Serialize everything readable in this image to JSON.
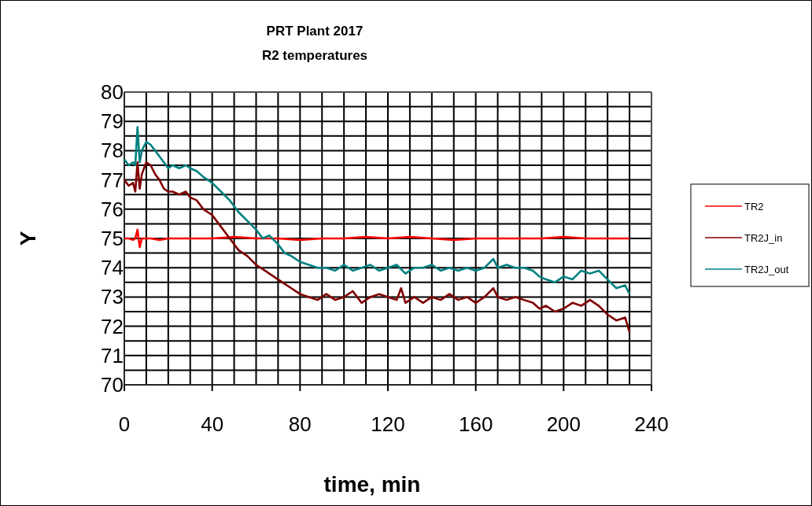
{
  "chart_data": {
    "type": "line",
    "title": "PRT Plant 2017",
    "subtitle": "R2 temperatures",
    "xlabel": "time, min",
    "ylabel": "Y",
    "xlim": [
      0,
      240
    ],
    "ylim": [
      70,
      80
    ],
    "xticks": [
      0,
      {
        "value": 10,
        "label": null
      },
      {
        "value": 20,
        "label": null
      },
      {
        "value": 30,
        "label": null
      },
      40,
      {
        "value": 50,
        "label": null
      },
      {
        "value": 60,
        "label": null
      },
      {
        "value": 70,
        "label": null
      },
      80,
      {
        "value": 90,
        "label": null
      },
      {
        "value": 100,
        "label": null
      },
      {
        "value": 110,
        "label": null
      },
      120,
      {
        "value": 130,
        "label": null
      },
      {
        "value": 140,
        "label": null
      },
      {
        "value": 150,
        "label": null
      },
      160,
      {
        "value": 170,
        "label": null
      },
      {
        "value": 180,
        "label": null
      },
      {
        "value": 190,
        "label": null
      },
      200,
      {
        "value": 210,
        "label": null
      },
      {
        "value": 220,
        "label": null
      },
      {
        "value": 230,
        "label": null
      },
      240
    ],
    "yticks": [
      70,
      {
        "value": 70.5,
        "label": null
      },
      71,
      {
        "value": 71.5,
        "label": null
      },
      72,
      {
        "value": 72.5,
        "label": null
      },
      73,
      {
        "value": 73.5,
        "label": null
      },
      74,
      {
        "value": 74.5,
        "label": null
      },
      75,
      {
        "value": 75.5,
        "label": null
      },
      76,
      {
        "value": 76.5,
        "label": null
      },
      77,
      {
        "value": 77.5,
        "label": null
      },
      78,
      {
        "value": 78.5,
        "label": null
      },
      79,
      {
        "value": 79.5,
        "label": null
      },
      80
    ],
    "grid": true,
    "legend": "right",
    "marker": "none",
    "line_style": "solid",
    "series": [
      {
        "name": "TR2",
        "color": "#ff0000",
        "x": [
          0,
          2,
          4,
          5,
          6,
          7,
          8,
          12,
          16,
          20,
          30,
          40,
          50,
          60,
          70,
          80,
          90,
          100,
          110,
          120,
          130,
          140,
          150,
          160,
          170,
          180,
          190,
          200,
          210,
          220,
          230
        ],
        "values": [
          75.0,
          75.0,
          74.95,
          75.0,
          75.3,
          74.7,
          75.0,
          75.0,
          74.95,
          75.0,
          75.0,
          75.0,
          75.05,
          75.0,
          75.0,
          74.95,
          75.0,
          75.0,
          75.05,
          75.0,
          75.05,
          75.0,
          74.95,
          75.0,
          75.0,
          75.0,
          75.0,
          75.05,
          75.0,
          75.0,
          75.0
        ]
      },
      {
        "name": "TR2J_in",
        "color": "#800000",
        "x": [
          0,
          2,
          4,
          5,
          6,
          7,
          8,
          10,
          12,
          14,
          16,
          18,
          20,
          22,
          25,
          28,
          30,
          33,
          36,
          40,
          44,
          48,
          52,
          56,
          60,
          64,
          68,
          72,
          76,
          80,
          84,
          88,
          92,
          96,
          100,
          104,
          108,
          112,
          116,
          120,
          124,
          126,
          128,
          132,
          136,
          140,
          144,
          148,
          152,
          156,
          160,
          164,
          168,
          170,
          174,
          178,
          182,
          186,
          189,
          192,
          196,
          200,
          204,
          208,
          212,
          216,
          220,
          224,
          228,
          230
        ],
        "values": [
          77.0,
          76.8,
          76.9,
          76.6,
          77.6,
          76.7,
          77.2,
          77.6,
          77.5,
          77.2,
          77.0,
          76.7,
          76.6,
          76.6,
          76.5,
          76.6,
          76.4,
          76.3,
          76.0,
          75.8,
          75.4,
          75.0,
          74.6,
          74.4,
          74.1,
          73.9,
          73.7,
          73.5,
          73.3,
          73.1,
          73.0,
          72.9,
          73.1,
          72.9,
          73.0,
          73.2,
          72.8,
          73.0,
          73.1,
          73.0,
          72.9,
          73.3,
          72.8,
          73.0,
          72.8,
          73.0,
          72.9,
          73.1,
          72.9,
          73.0,
          72.8,
          73.0,
          73.3,
          73.0,
          72.9,
          73.0,
          72.9,
          72.8,
          72.6,
          72.7,
          72.5,
          72.6,
          72.8,
          72.7,
          72.9,
          72.7,
          72.4,
          72.2,
          72.3,
          71.8
        ]
      },
      {
        "name": "TR2J_out",
        "color": "#008080",
        "x": [
          0,
          2,
          4,
          5,
          6,
          7,
          8,
          10,
          12,
          14,
          16,
          18,
          20,
          22,
          25,
          28,
          30,
          33,
          36,
          40,
          44,
          48,
          52,
          56,
          60,
          63,
          66,
          70,
          73,
          76,
          80,
          84,
          88,
          92,
          96,
          100,
          104,
          108,
          112,
          116,
          120,
          124,
          128,
          132,
          136,
          140,
          144,
          148,
          152,
          156,
          160,
          164,
          168,
          170,
          174,
          178,
          182,
          186,
          189,
          192,
          196,
          200,
          204,
          208,
          212,
          216,
          220,
          224,
          228,
          230
        ],
        "values": [
          77.7,
          77.5,
          77.6,
          77.5,
          78.8,
          77.6,
          78.0,
          78.3,
          78.2,
          78.0,
          77.8,
          77.6,
          77.4,
          77.5,
          77.4,
          77.5,
          77.4,
          77.3,
          77.1,
          76.9,
          76.6,
          76.3,
          75.9,
          75.6,
          75.3,
          75.0,
          75.1,
          74.8,
          74.5,
          74.4,
          74.2,
          74.1,
          74.0,
          74.0,
          73.9,
          74.1,
          73.9,
          74.0,
          74.1,
          73.9,
          74.0,
          74.1,
          73.8,
          74.0,
          74.0,
          74.1,
          73.9,
          74.0,
          73.9,
          74.0,
          73.9,
          74.0,
          74.3,
          74.0,
          74.1,
          74.0,
          74.0,
          73.9,
          73.7,
          73.6,
          73.5,
          73.7,
          73.6,
          73.9,
          73.8,
          73.9,
          73.6,
          73.3,
          73.4,
          73.1
        ]
      }
    ]
  }
}
